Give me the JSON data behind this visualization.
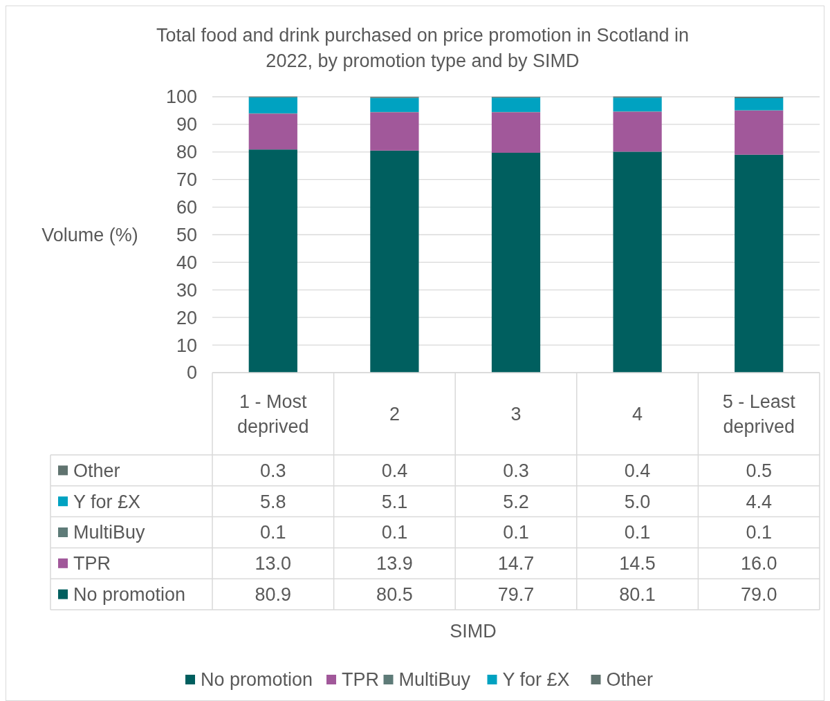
{
  "chart_data": {
    "type": "bar",
    "stacked": true,
    "title": "Total food and drink purchased on price promotion in Scotland in 2022, by promotion type and by SIMD",
    "ylabel": "Volume (%)",
    "annotations": [
      "SIMD"
    ],
    "categories": [
      "1 - Most deprived",
      "2",
      "3",
      "4",
      "5 - Least deprived"
    ],
    "series": [
      {
        "name": "No promotion",
        "color": "#005f5f",
        "values": [
          80.9,
          80.5,
          79.7,
          80.1,
          79.0
        ],
        "value_labels": [
          "80.9",
          "80.5",
          "79.7",
          "80.1",
          "79.0"
        ]
      },
      {
        "name": "TPR",
        "color": "#a1589a",
        "values": [
          13.0,
          13.9,
          14.7,
          14.5,
          16.0
        ],
        "value_labels": [
          "13.0",
          "13.9",
          "14.7",
          "14.5",
          "16.0"
        ]
      },
      {
        "name": "MultiBuy",
        "color": "#5e7b78",
        "values": [
          0.1,
          0.1,
          0.1,
          0.1,
          0.1
        ],
        "value_labels": [
          "0.1",
          "0.1",
          "0.1",
          "0.1",
          "0.1"
        ]
      },
      {
        "name": "Y for £X",
        "color": "#00a2c1",
        "values": [
          5.8,
          5.1,
          5.2,
          5.0,
          4.4
        ],
        "value_labels": [
          "5.8",
          "5.1",
          "5.2",
          "5.0",
          "4.4"
        ]
      },
      {
        "name": "Other",
        "color": "#60736f",
        "values": [
          0.3,
          0.4,
          0.3,
          0.4,
          0.5
        ],
        "value_labels": [
          "0.3",
          "0.4",
          "0.3",
          "0.4",
          "0.5"
        ]
      }
    ],
    "ylim": [
      0,
      100
    ],
    "yticks": [
      0,
      10,
      20,
      30,
      40,
      50,
      60,
      70,
      80,
      90,
      100
    ],
    "grid": "y",
    "legend": "bottom"
  }
}
